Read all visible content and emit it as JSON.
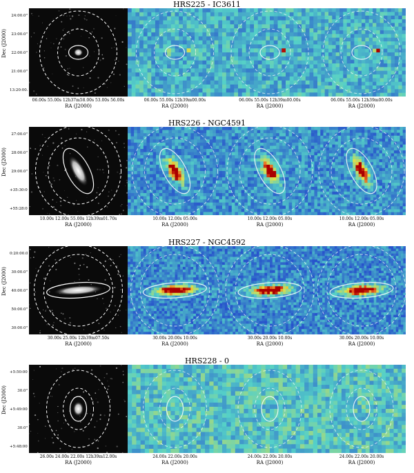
{
  "figure": {
    "rows": [
      {
        "title": "HRS225 - IC3611",
        "ylabel": "Dec (J2000)",
        "yticks": [
          "24:00.0\"",
          "23:00.0\"",
          "22:00.0\"",
          "21:00.0\"",
          "13:20:00.0\""
        ],
        "xticks": [
          "06.00s 55.00s 12h37m58.00s 53.00s 56.00s",
          "06.00s 55.00s 12h39m00.00s",
          "06.00s 55.00s 12h39m00.00s",
          "06.00s 55.00s 12h39m00.00s"
        ],
        "xlabels": [
          "RA (J2000)",
          "RA (J2000)",
          "RA (J2000)",
          "RA (J2000)"
        ]
      },
      {
        "title": "HRS226 - NGC4591",
        "ylabel": "Dec (J2000)",
        "yticks": [
          "27:00.0\"",
          "28:00.0\"",
          "29:00.0\"",
          "+35:30:00.0\"",
          "+55:28:00.0\""
        ],
        "xticks": [
          "10.00s 12.00s 55.00s 12h39m01.70s",
          "10.00s 12.00s 05.00s",
          "10.00s 12.00s 05.00s",
          "10.00s 12.00s 05.00s"
        ],
        "xlabels": [
          "RA (J2000)",
          "RA (J2000)",
          "RA (J2000)",
          "RA (J2000)"
        ]
      },
      {
        "title": "HRS227 - NGC4592",
        "ylabel": "Dec (J2000)",
        "yticks": [
          "0:20:00.0\"",
          "30:00.0\"",
          "40:00.0\"",
          "50:00.0\"",
          "30:00.0\""
        ],
        "xticks": [
          "30.00s 25.00s 12h39m07.50s",
          "30.00s 20.00s 10.00s",
          "30.00s 20.00s 10.00s",
          "30.00s 20.00s 10.00s"
        ],
        "xlabels": [
          "RA (J2000)",
          "RA (J2000)",
          "RA (J2000)",
          "RA (J2000)"
        ]
      },
      {
        "title": "HRS228 - 0",
        "ylabel": "Dec (J2000)",
        "yticks": [
          "+5:50:00.0\"",
          "30.0\"",
          "+5:49:00.0\"",
          "30.0\"",
          "+5:48:00.0\""
        ],
        "xticks": [
          "26.00s 24.00s 22.00s 12h39m12.00s",
          "24.00s 22.00s 20.00s",
          "24.00s 22.00s 20.00s",
          "24.00s 22.00s 20.00s"
        ],
        "xlabels": [
          "RA (J2000)",
          "RA (J2000)",
          "RA (J2000)",
          "RA (J2000)"
        ]
      }
    ],
    "colors": {
      "optical_bg": "#0a0a0a",
      "map_low": "#2244cc",
      "map_mid": "#55d0c8",
      "map_high": "#e8e040",
      "map_peak": "#aa0000",
      "aperture": "#ffffff"
    }
  }
}
